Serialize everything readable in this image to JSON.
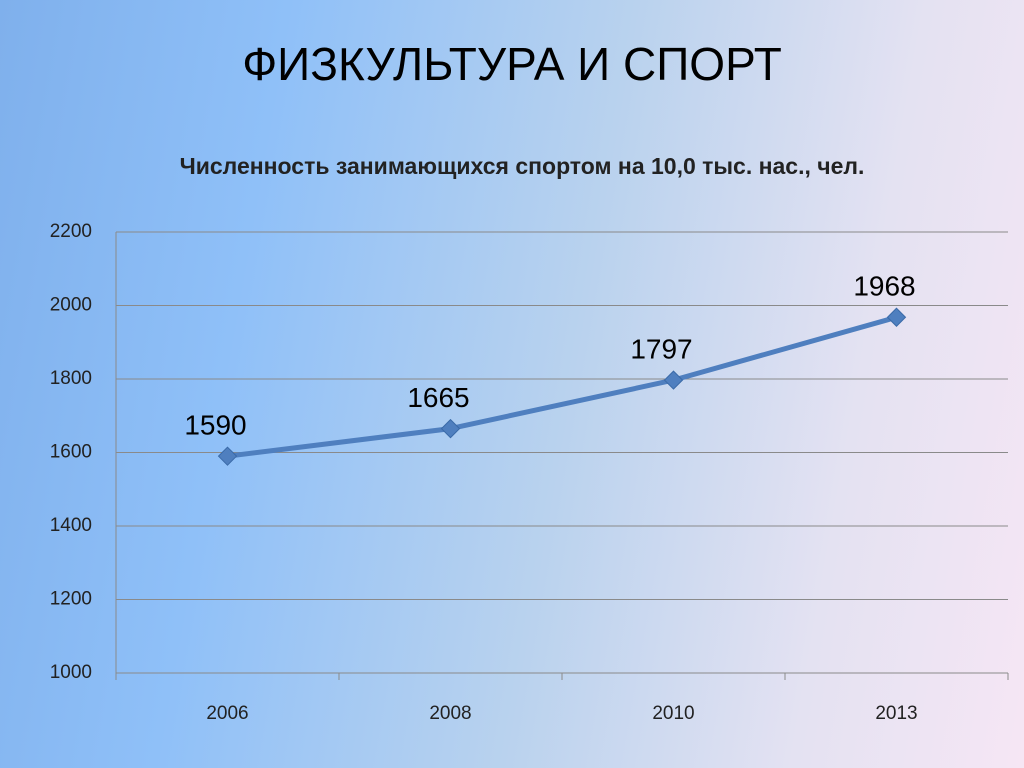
{
  "slide": {
    "title": "ФИЗКУЛЬТУРА И СПОРТ"
  },
  "chart_data": {
    "type": "line",
    "title": "Численность занимающихся спортом на 10,0 тыс. нас., чел.",
    "categories": [
      "2006",
      "2008",
      "2010",
      "2013"
    ],
    "series": [
      {
        "color": "#4f7fbf",
        "values": [
          1590,
          1665,
          1797,
          1968
        ]
      }
    ],
    "ylim": [
      1000,
      2200
    ],
    "yticks": [
      1000,
      1200,
      1400,
      1600,
      1800,
      2000,
      2200
    ],
    "grid": true,
    "data_labels": true
  }
}
